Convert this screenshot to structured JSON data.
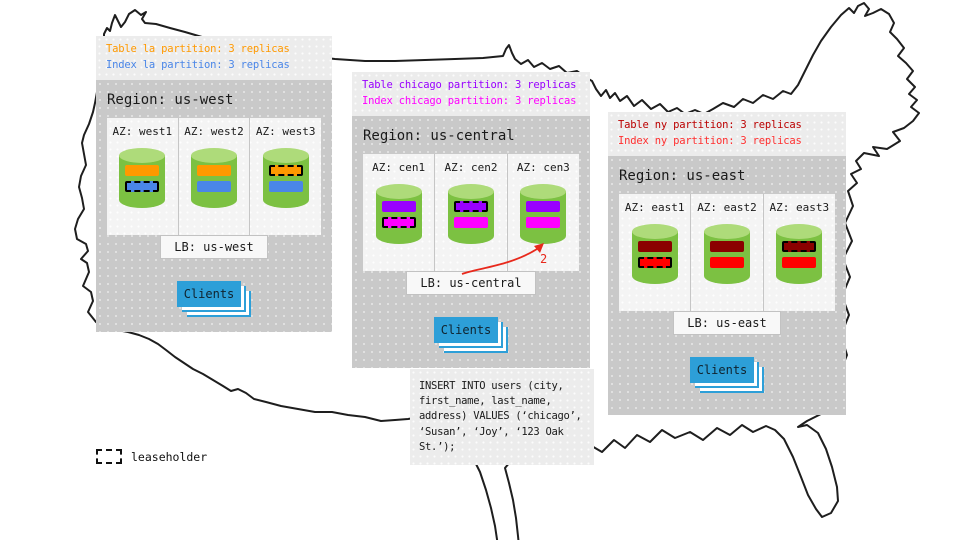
{
  "colors": {
    "table_la": "#FF9900",
    "index_la": "#4A86E8",
    "table_chicago": "#9900FF",
    "index_chicago": "#FF00FF",
    "table_ny": "#BB0000",
    "index_ny": "#FF3030",
    "cylinder_body": "#7CC142",
    "cylinder_top": "#AEDB7A",
    "clients_button": "#2D9FD8",
    "arrow": "#E8291C",
    "panel_body": "#C9C9C9",
    "panel_header": "#ECECEC"
  },
  "regions": [
    {
      "id": "us-west",
      "annotations": [
        {
          "text": "Table la partition: 3 replicas",
          "color": "#FF9900"
        },
        {
          "text": "Index la partition: 3 replicas",
          "color": "#4A86E8"
        }
      ],
      "region_label": "Region: us-west",
      "azs": [
        {
          "label": "AZ: west1",
          "bars": [
            {
              "color": "#FF9900",
              "leaseholder": false
            },
            {
              "color": "#4A86E8",
              "leaseholder": true
            }
          ]
        },
        {
          "label": "AZ: west2",
          "bars": [
            {
              "color": "#FF9900",
              "leaseholder": false
            },
            {
              "color": "#4A86E8",
              "leaseholder": false
            }
          ]
        },
        {
          "label": "AZ: west3",
          "bars": [
            {
              "color": "#FF9900",
              "leaseholder": true
            },
            {
              "color": "#4A86E8",
              "leaseholder": false
            }
          ]
        }
      ],
      "lb_label": "LB: us-west",
      "clients_label": "Clients"
    },
    {
      "id": "us-central",
      "annotations": [
        {
          "text": "Table chicago partition: 3 replicas",
          "color": "#9900FF"
        },
        {
          "text": "Index chicago partition: 3 replicas",
          "color": "#FF00FF"
        }
      ],
      "region_label": "Region: us-central",
      "azs": [
        {
          "label": "AZ: cen1",
          "bars": [
            {
              "color": "#9900FF",
              "leaseholder": false
            },
            {
              "color": "#FF00FF",
              "leaseholder": true
            }
          ]
        },
        {
          "label": "AZ: cen2",
          "bars": [
            {
              "color": "#9900FF",
              "leaseholder": true
            },
            {
              "color": "#FF00FF",
              "leaseholder": false
            }
          ]
        },
        {
          "label": "AZ: cen3",
          "bars": [
            {
              "color": "#9900FF",
              "leaseholder": false
            },
            {
              "color": "#FF00FF",
              "leaseholder": false
            }
          ]
        }
      ],
      "lb_label": "LB: us-central",
      "clients_label": "Clients"
    },
    {
      "id": "us-east",
      "annotations": [
        {
          "text": "Table ny partition: 3 replicas",
          "color": "#BB0000"
        },
        {
          "text": "Index ny partition: 3 replicas",
          "color": "#FF3030"
        }
      ],
      "region_label": "Region: us-east",
      "azs": [
        {
          "label": "AZ: east1",
          "bars": [
            {
              "color": "#8B0000",
              "leaseholder": false
            },
            {
              "color": "#FF0000",
              "leaseholder": true
            }
          ]
        },
        {
          "label": "AZ: east2",
          "bars": [
            {
              "color": "#8B0000",
              "leaseholder": false
            },
            {
              "color": "#FF0000",
              "leaseholder": false
            }
          ]
        },
        {
          "label": "AZ: east3",
          "bars": [
            {
              "color": "#8B0000",
              "leaseholder": true
            },
            {
              "color": "#FF0000",
              "leaseholder": false
            }
          ]
        }
      ],
      "lb_label": "LB: us-east",
      "clients_label": "Clients"
    }
  ],
  "sql": {
    "text": "INSERT INTO users (city,\nfirst_name, last_name,\naddress) VALUES (‘chicago’,\n‘Susan’, ‘Joy’, ‘123 Oak\nSt.’);"
  },
  "arrow": {
    "label": "2"
  },
  "legend": {
    "label": "leaseholder"
  }
}
